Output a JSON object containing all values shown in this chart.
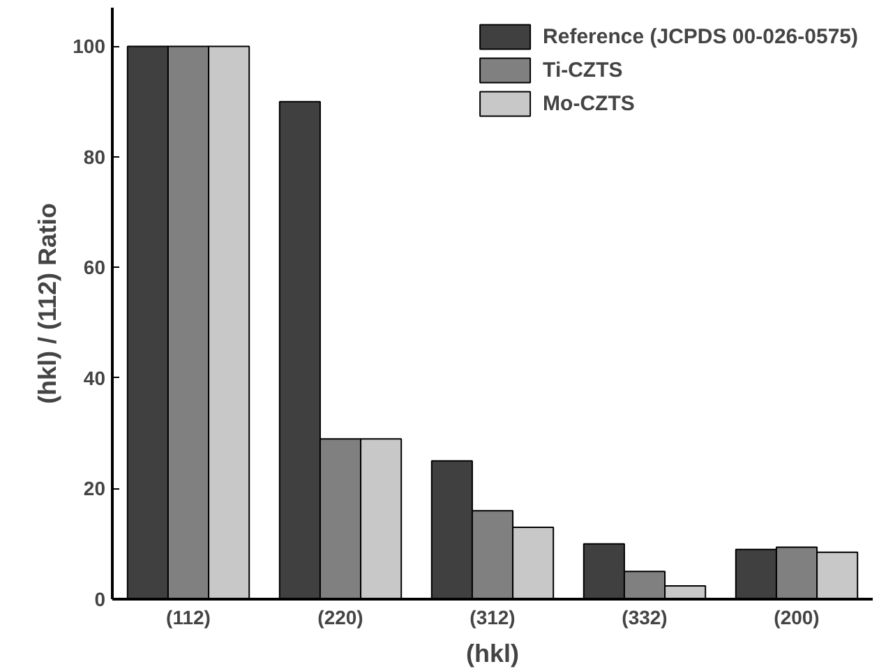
{
  "chart_data": {
    "type": "bar",
    "xlabel": "(hkl)",
    "ylabel": "(hkl) / (112) Ratio",
    "categories": [
      "(112)",
      "(220)",
      "(312)",
      "(332)",
      "(200)"
    ],
    "series": [
      {
        "name": "Reference (JCPDS 00-026-0575)",
        "color": "#404040",
        "values": [
          100,
          90,
          25,
          10,
          9
        ]
      },
      {
        "name": "Ti-CZTS",
        "color": "#808080",
        "values": [
          100,
          29,
          16,
          5,
          9.4
        ]
      },
      {
        "name": "Mo-CZTS",
        "color": "#c8c8c8",
        "values": [
          100,
          29,
          13,
          2.4,
          8.5
        ]
      }
    ],
    "ylim": [
      0,
      107
    ],
    "yticks": [
      0,
      20,
      40,
      60,
      80,
      100
    ],
    "grid": false,
    "legend": "top right"
  }
}
